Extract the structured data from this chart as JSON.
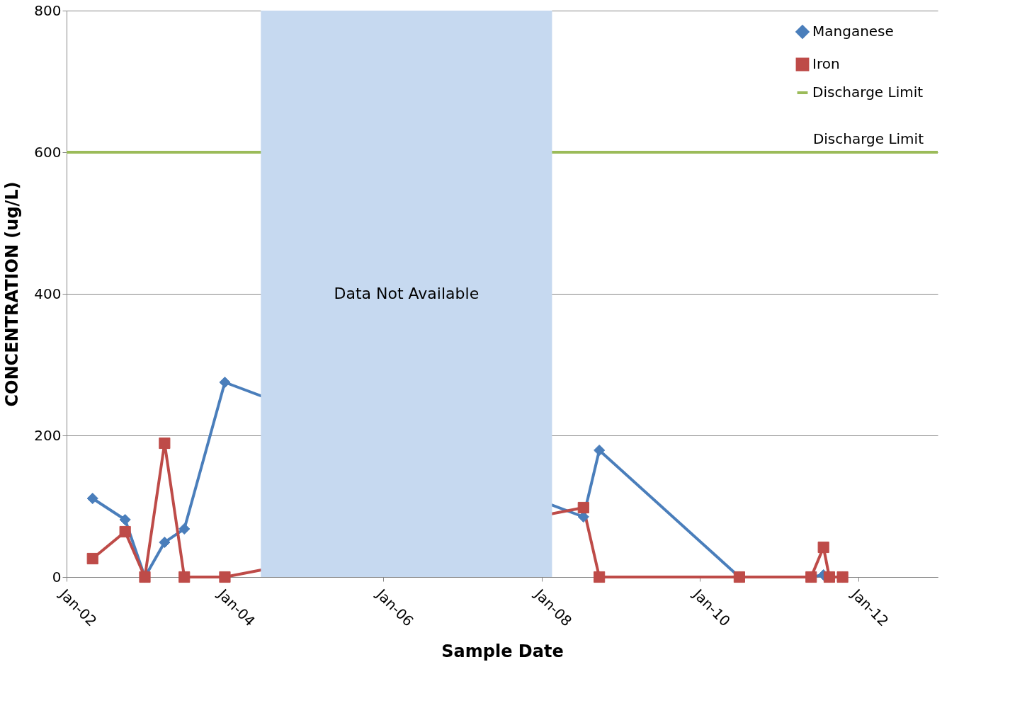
{
  "chart_data": {
    "type": "line",
    "xlabel": "Sample Date",
    "ylabel": "CONCENTRATION (ug/L)",
    "series": [
      {
        "name": "Manganese",
        "color": "#4a7ebb",
        "marker": "diamond",
        "x": [
          "2002-05-01",
          "2002-09-28",
          "2002-12-28",
          "2003-03-29",
          "2003-06-28",
          "2004-01-01",
          "2008-07-12",
          "2008-09-23",
          "2010-07-01",
          "2011-05-28",
          "2011-07-24",
          "2011-08-20",
          "2011-10-20"
        ],
        "values": [
          111,
          81,
          0,
          49,
          68,
          275,
          85,
          179,
          0,
          0,
          3,
          0,
          0
        ]
      },
      {
        "name": "Iron",
        "color": "#be4b48",
        "marker": "square",
        "x": [
          "2002-05-01",
          "2002-09-28",
          "2002-12-28",
          "2003-03-29",
          "2003-06-28",
          "2004-01-01",
          "2008-07-12",
          "2008-09-23",
          "2010-07-01",
          "2011-05-28",
          "2011-07-24",
          "2011-08-20",
          "2011-10-20"
        ],
        "values": [
          26,
          64,
          0,
          189,
          0,
          0,
          98,
          0,
          0,
          0,
          42,
          0,
          0
        ]
      }
    ],
    "ref_lines": [
      {
        "axis": "y",
        "value": 600,
        "label": "Discharge Limit",
        "color": "#9bbb59"
      }
    ],
    "bands": [
      {
        "axis": "x",
        "from": "2004-06-15",
        "to": "2008-02-18",
        "label": "Data Not Available",
        "color": "#c6d9f0"
      }
    ],
    "xlim": [
      "2002-01-01",
      "2013-01-01"
    ],
    "xticks": [
      {
        "value": "2002-01-01",
        "label": "Jan-02"
      },
      {
        "value": "2004-01-01",
        "label": "Jan-04"
      },
      {
        "value": "2006-01-01",
        "label": "Jan-06"
      },
      {
        "value": "2008-01-01",
        "label": "Jan-08"
      },
      {
        "value": "2010-01-01",
        "label": "Jan-10"
      },
      {
        "value": "2012-01-01",
        "label": "Jan-12"
      }
    ],
    "ylim": [
      0,
      800
    ],
    "yticks": [
      0,
      200,
      400,
      600,
      800
    ],
    "grid": "y",
    "legend": "top right",
    "line_style": "solid"
  }
}
